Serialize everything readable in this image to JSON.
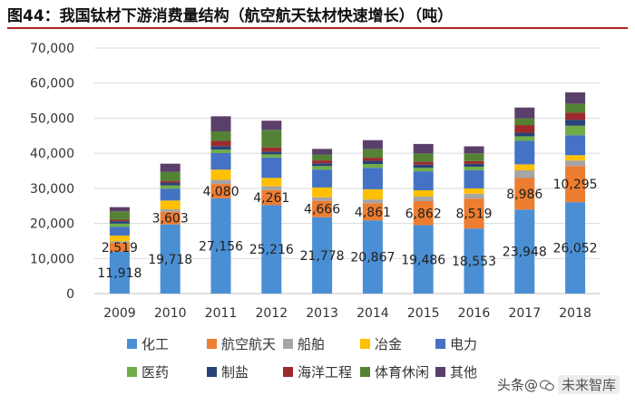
{
  "title": "图44：我国钛材下游消费量结构（航空航天钛材快速增长）（吨）",
  "watermark": {
    "prefix": "头条",
    "at": "@",
    "source": "未来智库"
  },
  "chart_data": {
    "type": "bar",
    "stacked": true,
    "title": "图44：我国钛材下游消费量结构（航空航天钛材快速增长）（吨）",
    "xlabel": "",
    "ylabel": "",
    "ylim": [
      0,
      70000
    ],
    "yticks": [
      0,
      10000,
      20000,
      30000,
      40000,
      50000,
      60000,
      70000
    ],
    "ytick_labels": [
      "0",
      "10,000",
      "20,000",
      "30,000",
      "40,000",
      "50,000",
      "60,000",
      "70,000"
    ],
    "grid": true,
    "legend_position": "bottom",
    "categories": [
      "2009",
      "2010",
      "2011",
      "2012",
      "2013",
      "2014",
      "2015",
      "2016",
      "2017",
      "2018"
    ],
    "series": [
      {
        "name": "化工",
        "color": "#4a8fd4",
        "values": [
          11918,
          19718,
          27156,
          25216,
          21778,
          20867,
          19486,
          18553,
          23948,
          26052
        ],
        "labels": [
          "11,918",
          "19,718",
          "27,156",
          "25,216",
          "21,778",
          "20,867",
          "19,486",
          "18,553",
          "23,948",
          "26,052"
        ]
      },
      {
        "name": "航空航天",
        "color": "#ed7d31",
        "values": [
          2519,
          3603,
          4080,
          4261,
          4666,
          4861,
          6862,
          8519,
          8986,
          10295
        ],
        "labels": [
          "2,519",
          "3,603",
          "4,080",
          "4,261",
          "4,666",
          "4,861",
          "6,862",
          "8,519",
          "8,986",
          "10,295"
        ]
      },
      {
        "name": "船舶",
        "color": "#a5a5a5",
        "values": [
          500,
          700,
          1200,
          1100,
          1000,
          1100,
          1300,
          1400,
          2200,
          1600
        ]
      },
      {
        "name": "冶金",
        "color": "#ffc000",
        "values": [
          1600,
          2500,
          2900,
          2400,
          2800,
          2900,
          1800,
          1500,
          1700,
          1500
        ]
      },
      {
        "name": "电力",
        "color": "#4472c4",
        "values": [
          2500,
          3400,
          4700,
          5800,
          5100,
          6100,
          5400,
          5200,
          6700,
          5700
        ]
      },
      {
        "name": "医药",
        "color": "#70ad47",
        "values": [
          900,
          900,
          1000,
          900,
          1000,
          1100,
          1000,
          1000,
          1300,
          2700
        ]
      },
      {
        "name": "制盐",
        "color": "#264478",
        "values": [
          700,
          800,
          1000,
          800,
          800,
          900,
          900,
          800,
          1000,
          1700
        ]
      },
      {
        "name": "海洋工程",
        "color": "#9e2a2b",
        "values": [
          400,
          500,
          1500,
          1200,
          800,
          900,
          800,
          800,
          2200,
          2000
        ]
      },
      {
        "name": "体育休闲",
        "color": "#548235",
        "values": [
          2400,
          2600,
          2700,
          5000,
          1700,
          2500,
          2400,
          2200,
          1900,
          2600
        ]
      },
      {
        "name": "其他",
        "color": "#5b3f6b",
        "values": [
          1200,
          2300,
          4300,
          2600,
          1600,
          2500,
          2700,
          2000,
          3100,
          3200
        ]
      }
    ]
  }
}
